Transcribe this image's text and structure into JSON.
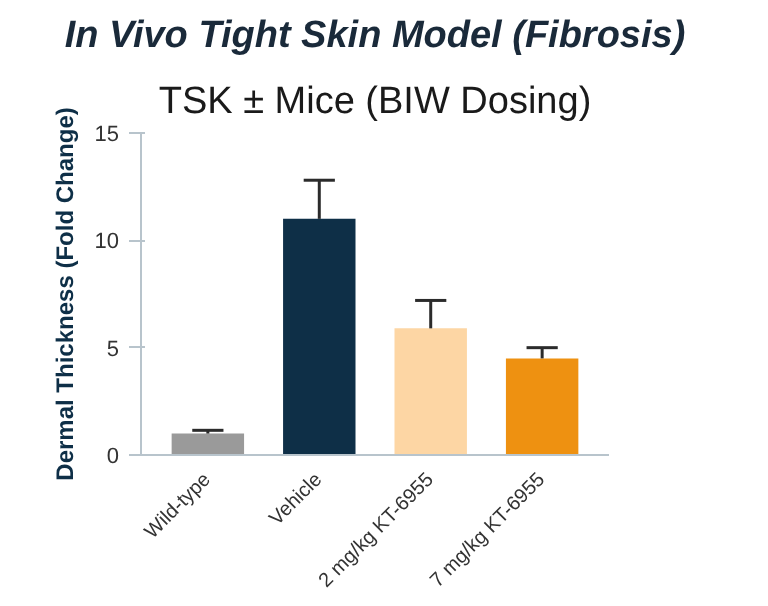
{
  "chart_data": {
    "type": "bar",
    "title": "In Vivo Tight Skin Model (Fibrosis)",
    "subtitle": "TSK ± Mice (BIW Dosing)",
    "ylabel": "Dermal Thickness (Fold Change)",
    "categories": [
      "Wild-type",
      "Vehicle",
      "2 mg/kg KT-6955",
      "7 mg/kg KT-6955"
    ],
    "values": [
      1.0,
      11.0,
      5.9,
      4.5
    ],
    "colors": [
      "#9a9a9a",
      "#0e2f47",
      "#fdd6a4",
      "#ee9111"
    ],
    "errors": [
      [
        1.0,
        1.15
      ],
      [
        11.0,
        12.8
      ],
      [
        5.9,
        7.2
      ],
      [
        4.5,
        5.0
      ]
    ],
    "ylim": [
      0,
      15
    ],
    "yticks": [
      0,
      5,
      10,
      15
    ],
    "grid": false
  }
}
